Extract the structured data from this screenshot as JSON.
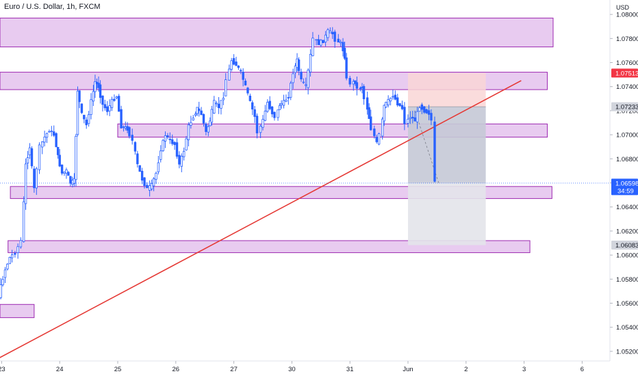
{
  "header": {
    "title": "Euro / U.S. Dollar, 1h, FXCM"
  },
  "chart_data": {
    "type": "candlestick",
    "title": "Euro / U.S. Dollar, 1h, FXCM",
    "y_unit": "USD",
    "ylim": [
      1.0512,
      1.0812
    ],
    "y_ticks": [
      1.052,
      1.054,
      1.056,
      1.058,
      1.06,
      1.062,
      1.064,
      1.066,
      1.068,
      1.07,
      1.072,
      1.074,
      1.076,
      1.078,
      1.08
    ],
    "y_tick_labels": [
      "1.05200",
      "1.05400",
      "1.05600",
      "1.05800",
      "1.06000",
      "1.06200",
      "1.06400",
      "1.06600",
      "1.06800",
      "1.07000",
      "1.07200",
      "1.07400",
      "1.07600",
      "1.07800",
      "1.08000"
    ],
    "x_ticks": [
      {
        "label": "23",
        "x": 0.5
      },
      {
        "label": "24",
        "x": 1.5
      },
      {
        "label": "25",
        "x": 2.5
      },
      {
        "label": "26",
        "x": 3.5
      },
      {
        "label": "27",
        "x": 4.5
      },
      {
        "label": "30",
        "x": 5.5
      },
      {
        "label": "31",
        "x": 6.5
      },
      {
        "label": "Jun",
        "x": 7.5
      },
      {
        "label": "2",
        "x": 8.5
      },
      {
        "label": "3",
        "x": 9.5
      },
      {
        "label": "6",
        "x": 10.5
      }
    ],
    "xlim": [
      0,
      10.5
    ],
    "price_path": [
      [
        0.0,
        1.0575
      ],
      [
        0.1,
        1.0552
      ],
      [
        0.18,
        1.0558
      ],
      [
        0.28,
        1.0538
      ],
      [
        0.35,
        1.0546
      ],
      [
        0.45,
        1.0558
      ],
      [
        0.52,
        1.0574
      ],
      [
        0.6,
        1.0588
      ],
      [
        0.68,
        1.0598
      ],
      [
        0.78,
        1.0602
      ],
      [
        0.88,
        1.0612
      ],
      [
        0.95,
        1.0675
      ],
      [
        1.02,
        1.069
      ],
      [
        1.1,
        1.0655
      ],
      [
        1.2,
        1.069
      ],
      [
        1.28,
        1.0698
      ],
      [
        1.36,
        1.0704
      ],
      [
        1.44,
        1.07
      ],
      [
        1.5,
        1.0682
      ],
      [
        1.58,
        1.0668
      ],
      [
        1.65,
        1.067
      ],
      [
        1.72,
        1.066
      ],
      [
        1.78,
        1.0662
      ],
      [
        1.84,
        1.0737
      ],
      [
        1.92,
        1.0717
      ],
      [
        2.0,
        1.0708
      ],
      [
        2.08,
        1.0728
      ],
      [
        2.14,
        1.0744
      ],
      [
        2.2,
        1.074
      ],
      [
        2.28,
        1.0725
      ],
      [
        2.36,
        1.072
      ],
      [
        2.44,
        1.0728
      ],
      [
        2.52,
        1.0732
      ],
      [
        2.6,
        1.0707
      ],
      [
        2.7,
        1.0705
      ],
      [
        2.8,
        1.0695
      ],
      [
        2.88,
        1.0675
      ],
      [
        2.96,
        1.0663
      ],
      [
        3.05,
        1.0655
      ],
      [
        3.12,
        1.0658
      ],
      [
        3.2,
        1.0668
      ],
      [
        3.28,
        1.0688
      ],
      [
        3.36,
        1.07
      ],
      [
        3.44,
        1.0695
      ],
      [
        3.52,
        1.0692
      ],
      [
        3.6,
        1.0675
      ],
      [
        3.68,
        1.0687
      ],
      [
        3.76,
        1.0707
      ],
      [
        3.84,
        1.0715
      ],
      [
        3.9,
        1.0722
      ],
      [
        3.98,
        1.0717
      ],
      [
        4.06,
        1.0702
      ],
      [
        4.12,
        1.0712
      ],
      [
        4.2,
        1.0727
      ],
      [
        4.28,
        1.0723
      ],
      [
        4.36,
        1.0732
      ],
      [
        4.42,
        1.0746
      ],
      [
        4.5,
        1.0762
      ],
      [
        4.58,
        1.0758
      ],
      [
        4.66,
        1.0752
      ],
      [
        4.74,
        1.074
      ],
      [
        4.82,
        1.0727
      ],
      [
        4.9,
        1.0715
      ],
      [
        4.96,
        1.0702
      ],
      [
        5.04,
        1.0712
      ],
      [
        5.12,
        1.0727
      ],
      [
        5.2,
        1.0718
      ],
      [
        5.26,
        1.0715
      ],
      [
        5.32,
        1.0725
      ],
      [
        5.4,
        1.0727
      ],
      [
        5.48,
        1.0732
      ],
      [
        5.56,
        1.0752
      ],
      [
        5.62,
        1.0762
      ],
      [
        5.7,
        1.0745
      ],
      [
        5.78,
        1.074
      ],
      [
        5.86,
        1.0766
      ],
      [
        5.92,
        1.078
      ],
      [
        6.0,
        1.0776
      ],
      [
        6.08,
        1.0778
      ],
      [
        6.16,
        1.0786
      ],
      [
        6.24,
        1.0784
      ],
      [
        6.3,
        1.0779
      ],
      [
        6.38,
        1.0776
      ],
      [
        6.44,
        1.0765
      ],
      [
        6.5,
        1.0746
      ],
      [
        6.56,
        1.0743
      ],
      [
        6.62,
        1.0744
      ],
      [
        6.68,
        1.0738
      ],
      [
        6.74,
        1.074
      ],
      [
        6.8,
        1.073
      ],
      [
        6.86,
        1.0714
      ],
      [
        6.92,
        1.0705
      ],
      [
        7.0,
        1.0693
      ],
      [
        7.06,
        1.07
      ],
      [
        7.12,
        1.0724
      ],
      [
        7.2,
        1.0728
      ],
      [
        7.28,
        1.0733
      ],
      [
        7.36,
        1.0726
      ],
      [
        7.44,
        1.0722
      ],
      [
        7.5,
        1.071
      ],
      [
        7.58,
        1.0715
      ],
      [
        7.66,
        1.0712
      ],
      [
        7.74,
        1.0724
      ],
      [
        7.82,
        1.072
      ],
      [
        7.9,
        1.0718
      ],
      [
        7.96,
        1.0712
      ],
      [
        8.02,
        1.066
      ]
    ],
    "horizontal_zones": [
      {
        "x_start": 0.0,
        "x_end": 10.0,
        "y_low": 1.0773,
        "y_high": 1.0797
      },
      {
        "x_start": 0.0,
        "x_end": 9.9,
        "y_low": 1.07375,
        "y_high": 1.0752
      },
      {
        "x_start": 2.5,
        "x_end": 9.9,
        "y_low": 1.0698,
        "y_high": 1.0709
      },
      {
        "x_start": 0.65,
        "x_end": 9.98,
        "y_low": 1.0647,
        "y_high": 1.0657
      },
      {
        "x_start": 0.61,
        "x_end": 9.6,
        "y_low": 1.0602,
        "y_high": 1.0612
      },
      {
        "x_start": 0.0,
        "x_end": 1.06,
        "y_low": 1.0548,
        "y_high": 1.0559
      }
    ],
    "trendline": {
      "x1": 0.36,
      "y1": 1.0512,
      "x2": 9.45,
      "y2": 1.0745
    },
    "position": {
      "x_start": 7.5,
      "x_end": 8.84,
      "entry": 1.07233,
      "stop": 1.07513,
      "target": 1.06083,
      "projected_end": 1.06598
    },
    "price_labels": [
      {
        "price": 1.07513,
        "text": "1.07513",
        "bg": "#f23645",
        "fg": "#ffffff"
      },
      {
        "price": 1.07233,
        "text": "1.07233",
        "bg": "#d1d4dc",
        "fg": "#131722"
      },
      {
        "price": 1.06598,
        "text": "1.06598",
        "sub": "34:59",
        "bg": "#2962ff",
        "fg": "#ffffff"
      },
      {
        "price": 1.06083,
        "text": "1.06083",
        "bg": "#d1d4dc",
        "fg": "#131722"
      }
    ],
    "colors": {
      "up": "#2962ff",
      "down": "#2962ff",
      "zone_fill": "#e8cbf0",
      "zone_stroke": "#9c27b0",
      "trendline": "#e53935",
      "stop_fill": "#f9d6d6",
      "target_fill": "#c5c9d6",
      "target_fill_light": "#e3e4ea",
      "price_line": "#2962ff"
    }
  }
}
